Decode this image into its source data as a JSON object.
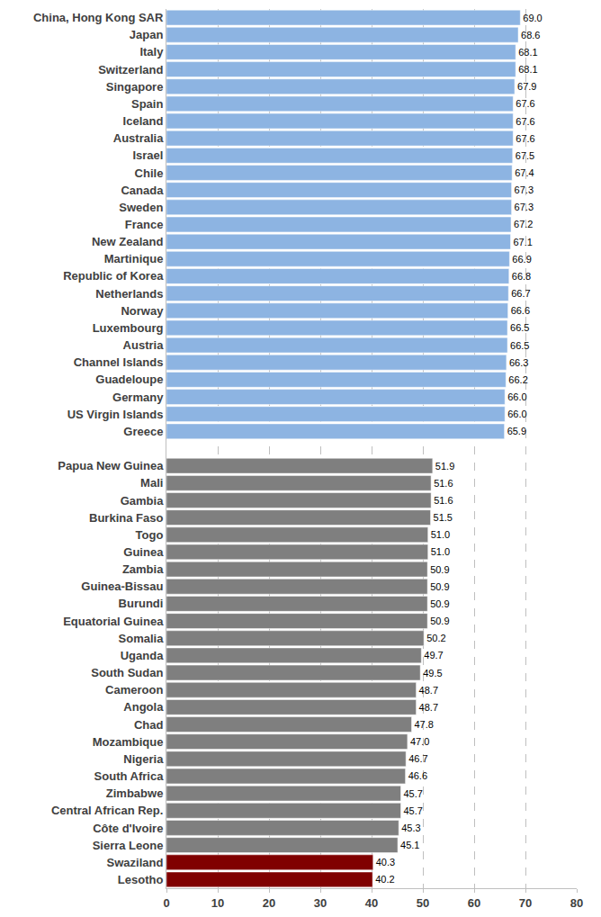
{
  "chart_data": {
    "type": "bar",
    "orientation": "horizontal",
    "categories": [
      "China, Hong Kong SAR",
      "Japan",
      "Italy",
      "Switzerland",
      "Singapore",
      "Spain",
      "Iceland",
      "Australia",
      "Israel",
      "Chile",
      "Canada",
      "Sweden",
      "France",
      "New Zealand",
      "Martinique",
      "Republic of Korea",
      "Netherlands",
      "Norway",
      "Luxembourg",
      "Austria",
      "Channel Islands",
      "Guadeloupe",
      "Germany",
      "US Virgin Islands",
      "Greece",
      null,
      "Papua New Guinea",
      "Mali",
      "Gambia",
      "Burkina Faso",
      "Togo",
      "Guinea",
      "Zambia",
      "Guinea-Bissau",
      "Burundi",
      "Equatorial Guinea",
      "Somalia",
      "Uganda",
      "South Sudan",
      "Cameroon",
      "Angola",
      "Chad",
      "Mozambique",
      "Nigeria",
      "South Africa",
      "Zimbabwe",
      "Central African Rep.",
      "Côte d'Ivoire",
      "Sierra Leone",
      "Swaziland",
      "Lesotho"
    ],
    "values": [
      69.0,
      68.6,
      68.1,
      68.1,
      67.9,
      67.6,
      67.6,
      67.6,
      67.5,
      67.4,
      67.3,
      67.3,
      67.2,
      67.1,
      66.9,
      66.8,
      66.7,
      66.6,
      66.5,
      66.5,
      66.3,
      66.2,
      66.0,
      66.0,
      65.9,
      null,
      51.9,
      51.6,
      51.6,
      51.5,
      51.0,
      51.0,
      50.9,
      50.9,
      50.9,
      50.9,
      50.2,
      49.7,
      49.5,
      48.7,
      48.7,
      47.8,
      47.0,
      46.7,
      46.6,
      45.7,
      45.7,
      45.3,
      45.1,
      40.3,
      40.2
    ],
    "value_labels": [
      "69.0",
      "68.6",
      "68.1",
      "68.1",
      "67.9",
      "67.6",
      "67.6",
      "67.6",
      "67.5",
      "67.4",
      "67.3",
      "67.3",
      "67.2",
      "67.1",
      "66.9",
      "66.8",
      "66.7",
      "66.6",
      "66.5",
      "66.5",
      "66.3",
      "66.2",
      "66.0",
      "66.0",
      "65.9",
      null,
      "51.9",
      "51.6",
      "51.6",
      "51.5",
      "51.0",
      "51.0",
      "50.9",
      "50.9",
      "50.9",
      "50.9",
      "50.2",
      "49.7",
      "49.5",
      "48.7",
      "48.7",
      "47.8",
      "47.0",
      "46.7",
      "46.6",
      "45.7",
      "45.7",
      "45.3",
      "45.1",
      "40.3",
      "40.2"
    ],
    "colors": [
      "#8db4e2",
      "#8db4e2",
      "#8db4e2",
      "#8db4e2",
      "#8db4e2",
      "#8db4e2",
      "#8db4e2",
      "#8db4e2",
      "#8db4e2",
      "#8db4e2",
      "#8db4e2",
      "#8db4e2",
      "#8db4e2",
      "#8db4e2",
      "#8db4e2",
      "#8db4e2",
      "#8db4e2",
      "#8db4e2",
      "#8db4e2",
      "#8db4e2",
      "#8db4e2",
      "#8db4e2",
      "#8db4e2",
      "#8db4e2",
      "#8db4e2",
      null,
      "#7f7f7f",
      "#7f7f7f",
      "#7f7f7f",
      "#7f7f7f",
      "#7f7f7f",
      "#7f7f7f",
      "#7f7f7f",
      "#7f7f7f",
      "#7f7f7f",
      "#7f7f7f",
      "#7f7f7f",
      "#7f7f7f",
      "#7f7f7f",
      "#7f7f7f",
      "#7f7f7f",
      "#7f7f7f",
      "#7f7f7f",
      "#7f7f7f",
      "#7f7f7f",
      "#7f7f7f",
      "#7f7f7f",
      "#7f7f7f",
      "#7f7f7f",
      "#800000",
      "#800000"
    ],
    "xlim": [
      0,
      80
    ],
    "xticks": [
      0,
      10,
      20,
      30,
      40,
      50,
      60,
      70,
      80
    ],
    "grid": true,
    "data_labels": true
  }
}
